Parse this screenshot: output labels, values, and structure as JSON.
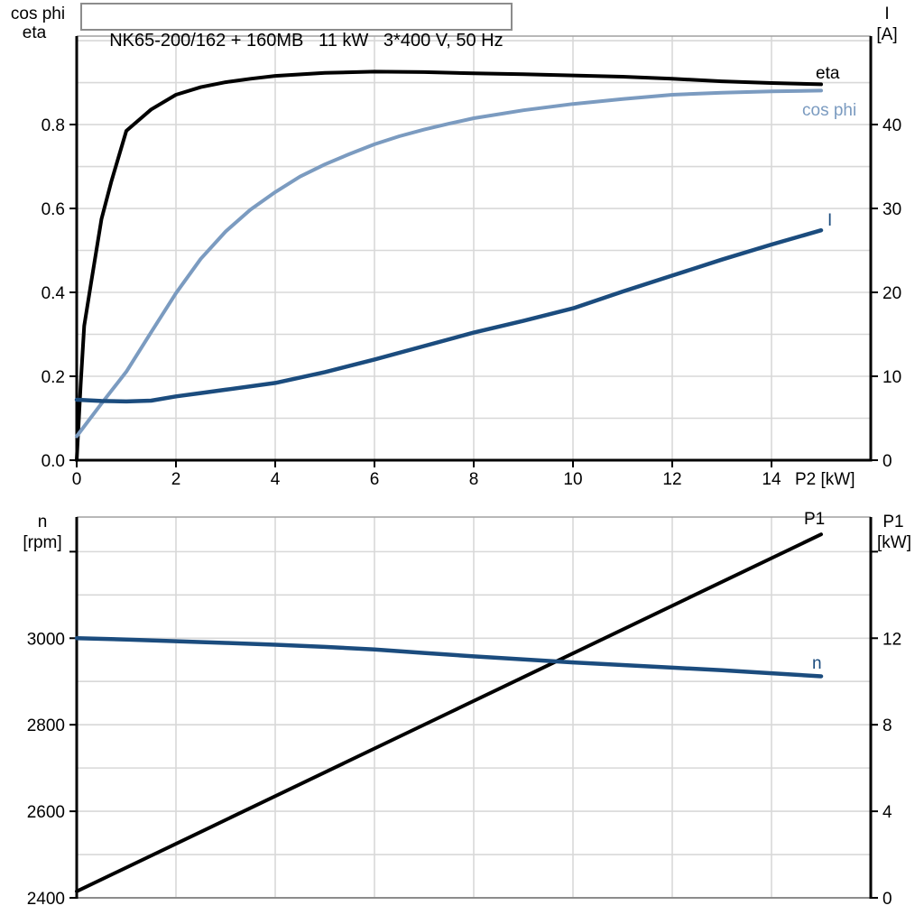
{
  "title": "NK65-200/162 + 160MB   11 kW   3*400 V, 50 Hz",
  "colors": {
    "black": "#000000",
    "light_blue": "#7b9bc0",
    "dark_blue": "#1b4c7e",
    "grid": "#d8d8d8",
    "border_gray": "#a0a0a0",
    "background": "#ffffff"
  },
  "chart_data": [
    {
      "type": "line",
      "title": "NK65-200/162 + 160MB   11 kW   3*400 V, 50 Hz",
      "x_axis": {
        "label": "P2 [kW]",
        "min": 0,
        "max": 16,
        "grid_step": 2,
        "ticks": [
          0,
          2,
          4,
          6,
          8,
          10,
          12,
          14
        ],
        "tick_labels": [
          "0",
          "2",
          "4",
          "6",
          "8",
          "10",
          "12",
          "14"
        ],
        "show_tick_labels": true
      },
      "y_left": {
        "header": [
          "cos phi",
          "eta"
        ],
        "min": 0,
        "max": 1.0108,
        "grid_step": 0.1,
        "ticks": [
          0,
          0.2,
          0.4,
          0.6,
          0.8
        ],
        "tick_labels": [
          "0.0",
          "0.2",
          "0.4",
          "0.6",
          "0.8"
        ]
      },
      "y_right": {
        "header": [
          "I",
          "[A]"
        ],
        "min": 0,
        "max": 50.54,
        "grid_step": 5,
        "ticks": [
          0,
          10,
          20,
          30,
          40
        ],
        "tick_labels": [
          "0",
          "10",
          "20",
          "30",
          "40"
        ]
      },
      "series": [
        {
          "name": "eta",
          "axis": "left",
          "color_key": "black",
          "points": [
            [
              0,
              0
            ],
            [
              0.08,
              0.18
            ],
            [
              0.15,
              0.32
            ],
            [
              0.3,
              0.43
            ],
            [
              0.5,
              0.575
            ],
            [
              0.7,
              0.665
            ],
            [
              1,
              0.785
            ],
            [
              1.5,
              0.836
            ],
            [
              2,
              0.871
            ],
            [
              2.5,
              0.889
            ],
            [
              3,
              0.901
            ],
            [
              3.5,
              0.909
            ],
            [
              4,
              0.916
            ],
            [
              5,
              0.923
            ],
            [
              6,
              0.926
            ],
            [
              7,
              0.925
            ],
            [
              8,
              0.922
            ],
            [
              9,
              0.92
            ],
            [
              10,
              0.917
            ],
            [
              11,
              0.914
            ],
            [
              12,
              0.909
            ],
            [
              13,
              0.903
            ],
            [
              14,
              0.899
            ],
            [
              15,
              0.896
            ]
          ]
        },
        {
          "name": "cos phi",
          "axis": "left",
          "color_key": "light_blue",
          "points": [
            [
              0,
              0.057
            ],
            [
              0.5,
              0.135
            ],
            [
              1,
              0.211
            ],
            [
              1.5,
              0.305
            ],
            [
              2,
              0.398
            ],
            [
              2.5,
              0.48
            ],
            [
              3,
              0.545
            ],
            [
              3.5,
              0.597
            ],
            [
              4,
              0.639
            ],
            [
              4.5,
              0.676
            ],
            [
              5,
              0.705
            ],
            [
              5.5,
              0.73
            ],
            [
              6,
              0.753
            ],
            [
              6.5,
              0.772
            ],
            [
              7,
              0.788
            ],
            [
              7.5,
              0.802
            ],
            [
              8,
              0.815
            ],
            [
              9,
              0.834
            ],
            [
              10,
              0.849
            ],
            [
              11,
              0.861
            ],
            [
              12,
              0.871
            ],
            [
              13,
              0.876
            ],
            [
              14,
              0.879
            ],
            [
              15,
              0.881
            ]
          ]
        },
        {
          "name": "I",
          "axis": "right",
          "color_key": "dark_blue",
          "points": [
            [
              0,
              7.2
            ],
            [
              0.5,
              7.05
            ],
            [
              1,
              7.0
            ],
            [
              1.5,
              7.1
            ],
            [
              2,
              7.6
            ],
            [
              2.5,
              8.0
            ],
            [
              3,
              8.4
            ],
            [
              4,
              9.2
            ],
            [
              5,
              10.5
            ],
            [
              6,
              12.0
            ],
            [
              7,
              13.6
            ],
            [
              8,
              15.2
            ],
            [
              9,
              16.6
            ],
            [
              10,
              18.1
            ],
            [
              11,
              20.1
            ],
            [
              12,
              22.0
            ],
            [
              13,
              23.9
            ],
            [
              14,
              25.7
            ],
            [
              15,
              27.4
            ]
          ]
        }
      ]
    },
    {
      "type": "line",
      "x_axis": {
        "label": "",
        "min": 0,
        "max": 16,
        "grid_step": 2,
        "ticks": [],
        "tick_labels": [],
        "show_tick_labels": false
      },
      "y_left": {
        "header": [
          "n",
          "[rpm]"
        ],
        "min": 2400,
        "max": 3280,
        "grid_step": 100,
        "ticks": [
          2400,
          2600,
          2800,
          3000,
          3200
        ],
        "tick_labels": [
          "2400",
          "2600",
          "2800",
          "3000",
          ""
        ]
      },
      "y_right": {
        "header": [
          "P1",
          "[kW]"
        ],
        "min": 0,
        "max": 17.6,
        "grid_step": 2,
        "ticks": [
          0,
          4,
          8,
          12,
          16
        ],
        "tick_labels": [
          "0",
          "4",
          "8",
          "12",
          ""
        ]
      },
      "series": [
        {
          "name": "P1",
          "axis": "right",
          "color_key": "black",
          "points": [
            [
              0,
              0.3
            ],
            [
              2.5,
              3.05
            ],
            [
              5,
              5.8
            ],
            [
              7.5,
              8.55
            ],
            [
              10,
              11.3
            ],
            [
              12.5,
              14.05
            ],
            [
              15,
              16.8
            ]
          ]
        },
        {
          "name": "n",
          "axis": "left",
          "color_key": "dark_blue",
          "points": [
            [
              0,
              3000
            ],
            [
              1,
              2997
            ],
            [
              2,
              2993
            ],
            [
              3,
              2989
            ],
            [
              4,
              2985
            ],
            [
              5,
              2980
            ],
            [
              6,
              2974
            ],
            [
              7,
              2966
            ],
            [
              8,
              2958
            ],
            [
              9,
              2951
            ],
            [
              10,
              2944
            ],
            [
              11,
              2938
            ],
            [
              12,
              2932
            ],
            [
              13,
              2926
            ],
            [
              14,
              2919
            ],
            [
              15,
              2912
            ]
          ]
        }
      ]
    }
  ]
}
